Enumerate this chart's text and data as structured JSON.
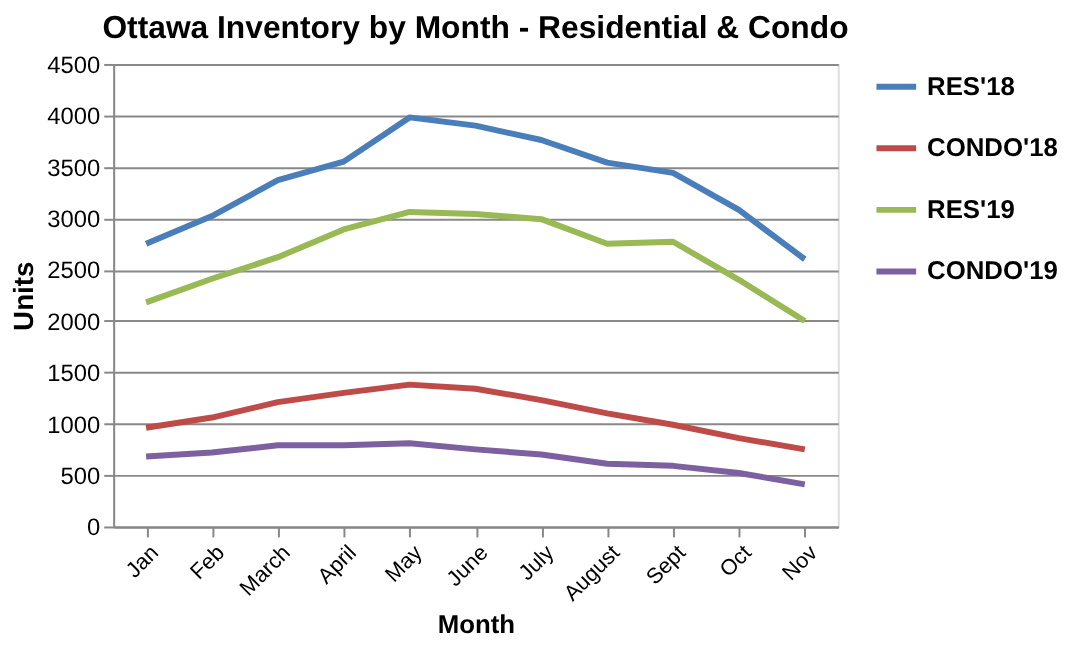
{
  "chart_data": {
    "type": "line",
    "title": "Ottawa Inventory by Month - Residential & Condo",
    "xlabel": "Month",
    "ylabel": "Units",
    "categories": [
      "Jan",
      "Feb",
      "March",
      "April",
      "May",
      "June",
      "July",
      "August",
      "Sept",
      "Oct",
      "Nov"
    ],
    "series": [
      {
        "name": "RES'18",
        "color": "#4a7ebb",
        "values": [
          2750,
          3020,
          3370,
          3550,
          3980,
          3900,
          3760,
          3540,
          3440,
          3080,
          2600
        ]
      },
      {
        "name": "CONDO'18",
        "color": "#be4b48",
        "values": [
          960,
          1060,
          1210,
          1300,
          1380,
          1340,
          1230,
          1100,
          990,
          860,
          750
        ]
      },
      {
        "name": "RES'19",
        "color": "#98b954",
        "values": [
          2180,
          2410,
          2620,
          2890,
          3060,
          3040,
          2990,
          2750,
          2770,
          2400,
          2000
        ]
      },
      {
        "name": "CONDO'19",
        "color": "#7d60a0",
        "values": [
          680,
          720,
          790,
          790,
          810,
          750,
          700,
          610,
          590,
          520,
          410
        ]
      }
    ],
    "ylim": [
      0,
      4500
    ],
    "yticks": [
      0,
      500,
      1000,
      1500,
      2000,
      2500,
      3000,
      3500,
      4000,
      4500
    ],
    "grid": "y",
    "legend": "right",
    "marker": "none",
    "line_style": "solid"
  }
}
